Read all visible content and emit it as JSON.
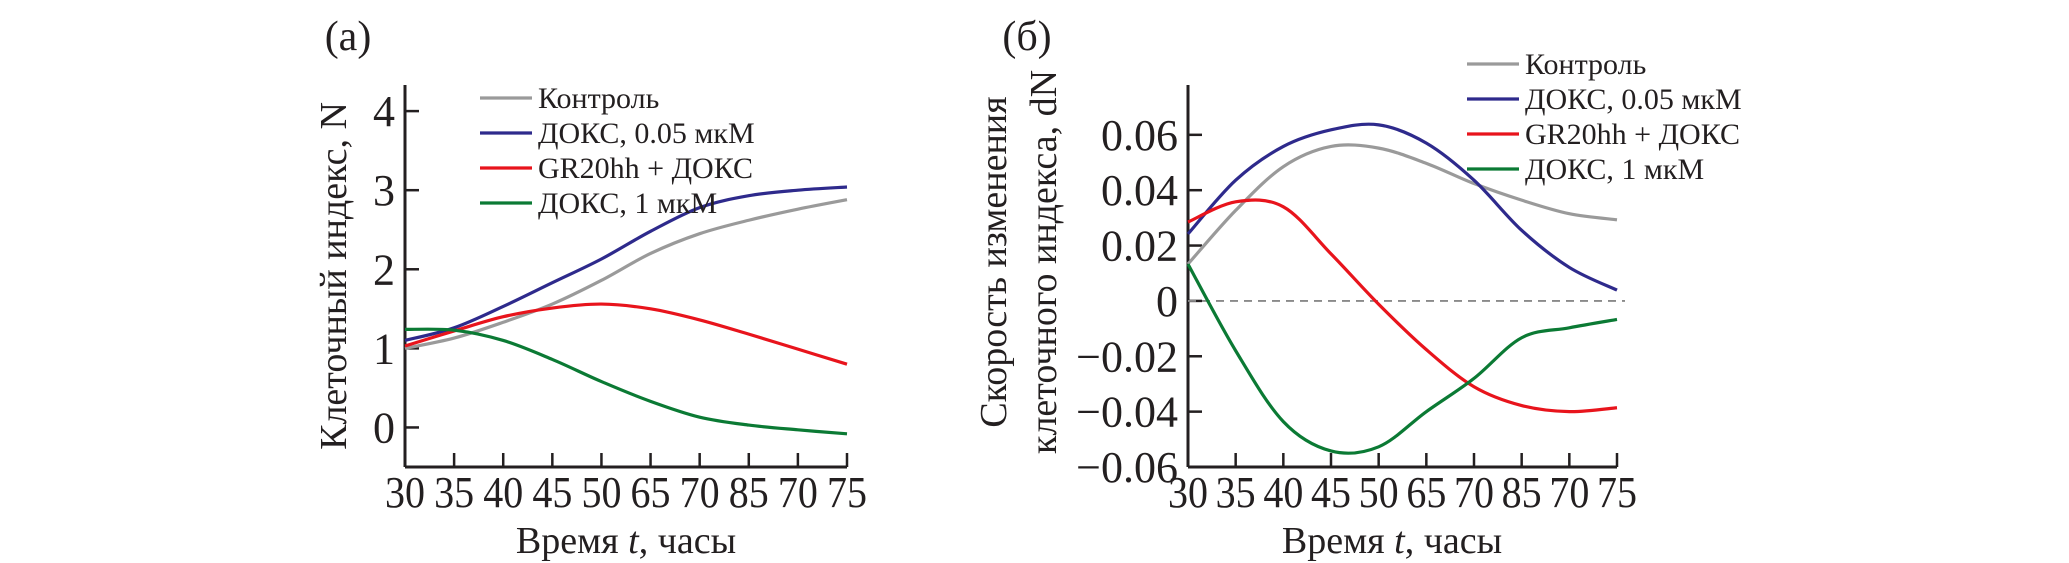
{
  "chart_data": [
    {
      "type": "line",
      "panel_label": "(a)",
      "xlabel_parts": [
        "Время ",
        "t",
        ", часы"
      ],
      "ylabel": "Клеточный индекс, N",
      "x_tick_labels": [
        "30",
        "35",
        "40",
        "45",
        "50",
        "65",
        "70",
        "85",
        "70",
        "75"
      ],
      "y_ticks": [
        0,
        1,
        2,
        3,
        4
      ],
      "y_tick_labels": [
        "0",
        "1",
        "2",
        "3",
        "4"
      ],
      "ylim": [
        -0.5,
        4.33
      ],
      "grid": false,
      "legend_position": "top-right",
      "series": [
        {
          "name": "Контроль",
          "color": "#9a9a9a",
          "values": [
            1.0,
            1.13,
            1.33,
            1.56,
            1.86,
            2.2,
            2.45,
            2.62,
            2.76,
            2.88
          ]
        },
        {
          "name": "ДОКС, 0.05 мкМ",
          "color": "#2e2a8c",
          "values": [
            1.1,
            1.26,
            1.53,
            1.83,
            2.13,
            2.48,
            2.78,
            2.93,
            3.0,
            3.04
          ]
        },
        {
          "name": "GR20hh + ДОКС",
          "color": "#e8141c",
          "values": [
            1.03,
            1.22,
            1.4,
            1.51,
            1.56,
            1.5,
            1.36,
            1.18,
            0.99,
            0.8
          ]
        },
        {
          "name": "ДОКС, 1 мкМ",
          "color": "#0b7a34",
          "values": [
            1.24,
            1.23,
            1.1,
            0.86,
            0.58,
            0.33,
            0.13,
            0.03,
            -0.03,
            -0.08
          ]
        }
      ]
    },
    {
      "type": "line",
      "panel_label": "(б)",
      "xlabel_parts": [
        "Время ",
        "t",
        ", часы"
      ],
      "ylabel_lines": [
        "Скорость изменения",
        "клеточного индекса, dN"
      ],
      "x_tick_labels": [
        "30",
        "35",
        "40",
        "45",
        "50",
        "65",
        "70",
        "85",
        "70",
        "75"
      ],
      "y_ticks": [
        -0.06,
        -0.04,
        -0.02,
        0,
        0.02,
        0.04,
        0.06
      ],
      "y_tick_labels": [
        "−0.06",
        "−0.04",
        "−0.02",
        "0",
        "0.02",
        "0.04",
        "0.06"
      ],
      "ylim": [
        -0.06,
        0.078
      ],
      "grid": false,
      "zero_reference_line": "dashed",
      "legend_position": "top-right",
      "series": [
        {
          "name": "Контроль",
          "color": "#9a9a9a",
          "values": [
            0.0133,
            0.0327,
            0.0485,
            0.0558,
            0.0552,
            0.0497,
            0.0424,
            0.0364,
            0.0315,
            0.0293
          ]
        },
        {
          "name": "ДОКС, 0.05 мкМ",
          "color": "#2e2a8c",
          "values": [
            0.0242,
            0.0436,
            0.0558,
            0.0618,
            0.0636,
            0.057,
            0.0436,
            0.0255,
            0.0121,
            0.0039
          ]
        },
        {
          "name": "GR20hh + ДОКС",
          "color": "#e8141c",
          "values": [
            0.0285,
            0.0358,
            0.034,
            0.017,
            -0.0012,
            -0.0176,
            -0.031,
            -0.0378,
            -0.04,
            -0.0386
          ]
        },
        {
          "name": "ДОКС, 1 мкМ",
          "color": "#0b7a34",
          "values": [
            0.0133,
            -0.018,
            -0.0436,
            -0.0542,
            -0.0527,
            -0.04,
            -0.028,
            -0.0133,
            -0.0097,
            -0.0067
          ]
        }
      ]
    }
  ]
}
